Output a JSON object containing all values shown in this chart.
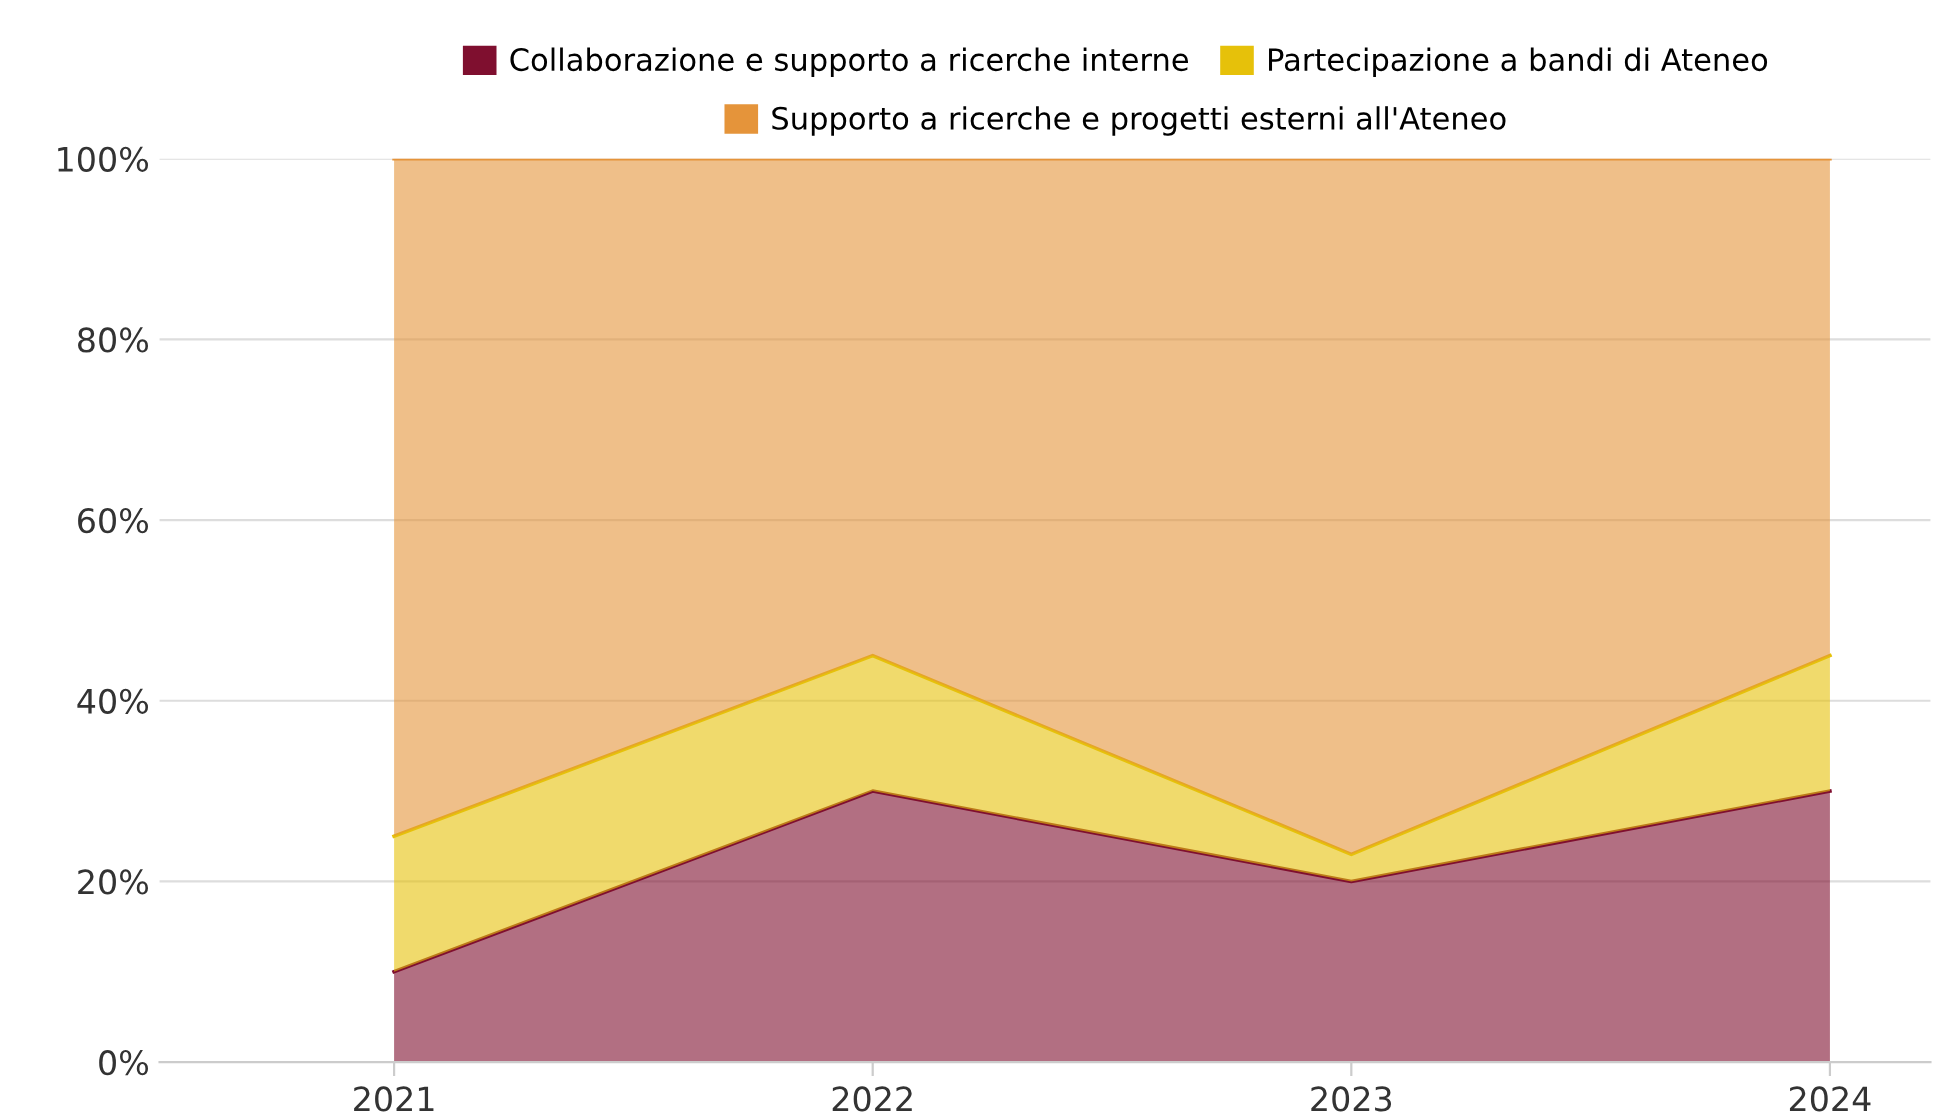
{
  "chart_data": {
    "type": "area",
    "stacked": true,
    "categories": [
      "2021",
      "2022",
      "2023",
      "2024"
    ],
    "series": [
      {
        "name": "Collaborazione e supporto a ricerche interne",
        "color": "#7f0f2f",
        "values": [
          10,
          30,
          20,
          30
        ]
      },
      {
        "name": "Partecipazione a bandi di Ateneo",
        "color": "#e6c10a",
        "values": [
          15,
          15,
          3,
          15
        ]
      },
      {
        "name": "Supporto a ricerche e progetti esterni all'Ateneo",
        "color": "#e5943a",
        "values": [
          75,
          55,
          77,
          55
        ]
      }
    ],
    "ylim": [
      0,
      100
    ],
    "yticks": [
      {
        "value": 0,
        "label": "0%"
      },
      {
        "value": 20,
        "label": "20%"
      },
      {
        "value": 40,
        "label": "40%"
      },
      {
        "value": 60,
        "label": "60%"
      },
      {
        "value": 80,
        "label": "80%"
      },
      {
        "value": 100,
        "label": "100%"
      }
    ],
    "grid": "y",
    "legend": "top"
  }
}
